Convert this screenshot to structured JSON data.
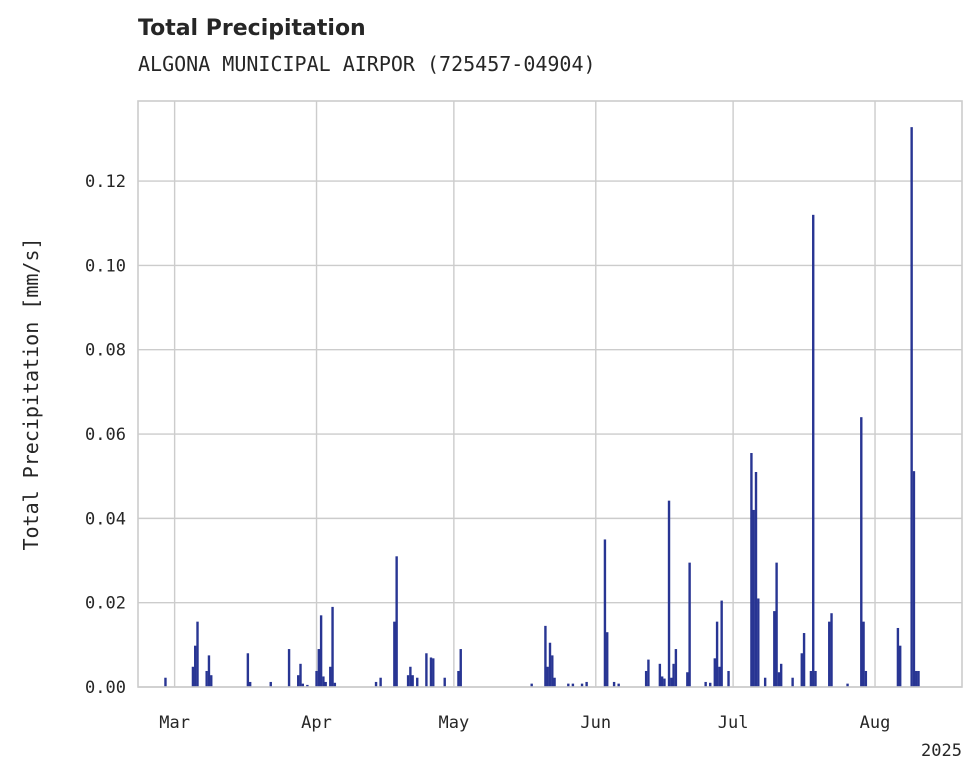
{
  "chart_data": {
    "type": "bar",
    "title": "Total Precipitation",
    "subtitle": "ALGONA MUNICIPAL AIRPOR (725457-04904)",
    "ylabel": "Total Precipitation [mm/s]",
    "xlabel": "",
    "year_label": "2025",
    "x_range": [
      "2025-02-21",
      "2025-08-20"
    ],
    "ylim": [
      0,
      0.139
    ],
    "grid": true,
    "bar_color": "#283593",
    "y_ticks": [
      "0.00",
      "0.02",
      "0.04",
      "0.06",
      "0.08",
      "0.10",
      "0.12"
    ],
    "y_tick_values": [
      0,
      0.02,
      0.04,
      0.06,
      0.08,
      0.1,
      0.12
    ],
    "x_ticks": [
      {
        "date": "2025-03-01",
        "label": "Mar"
      },
      {
        "date": "2025-04-01",
        "label": "Apr"
      },
      {
        "date": "2025-05-01",
        "label": "May"
      },
      {
        "date": "2025-06-01",
        "label": "Jun"
      },
      {
        "date": "2025-07-01",
        "label": "Jul"
      },
      {
        "date": "2025-08-01",
        "label": "Aug"
      }
    ],
    "series": [
      {
        "points": [
          [
            "2025-02-27",
            0.0022
          ],
          [
            "2025-03-05",
            0.0048
          ],
          [
            "2025-03-05T12:00",
            0.0098
          ],
          [
            "2025-03-06",
            0.0155
          ],
          [
            "2025-03-08",
            0.0038
          ],
          [
            "2025-03-08T12:00",
            0.0075
          ],
          [
            "2025-03-09",
            0.0028
          ],
          [
            "2025-03-17",
            0.008
          ],
          [
            "2025-03-17T12:00",
            0.0012
          ],
          [
            "2025-03-22",
            0.0012
          ],
          [
            "2025-03-26",
            0.009
          ],
          [
            "2025-03-28",
            0.0028
          ],
          [
            "2025-03-28T12:00",
            0.0055
          ],
          [
            "2025-03-29",
            0.0008
          ],
          [
            "2025-03-30",
            0.0005
          ],
          [
            "2025-04-01",
            0.0038
          ],
          [
            "2025-04-01T12:00",
            0.009
          ],
          [
            "2025-04-02",
            0.017
          ],
          [
            "2025-04-02T12:00",
            0.0025
          ],
          [
            "2025-04-03",
            0.0012
          ],
          [
            "2025-04-04",
            0.0048
          ],
          [
            "2025-04-04T12:00",
            0.019
          ],
          [
            "2025-04-05",
            0.001
          ],
          [
            "2025-04-14",
            0.0012
          ],
          [
            "2025-04-15",
            0.0022
          ],
          [
            "2025-04-18",
            0.0155
          ],
          [
            "2025-04-18T12:00",
            0.031
          ],
          [
            "2025-04-21",
            0.0028
          ],
          [
            "2025-04-21T12:00",
            0.0048
          ],
          [
            "2025-04-22",
            0.0028
          ],
          [
            "2025-04-23",
            0.0022
          ],
          [
            "2025-04-25",
            0.008
          ],
          [
            "2025-04-26",
            0.007
          ],
          [
            "2025-04-26T12:00",
            0.0068
          ],
          [
            "2025-04-29",
            0.0022
          ],
          [
            "2025-05-02",
            0.0038
          ],
          [
            "2025-05-02T12:00",
            0.009
          ],
          [
            "2025-05-18",
            0.0008
          ],
          [
            "2025-05-21",
            0.0145
          ],
          [
            "2025-05-21T12:00",
            0.0048
          ],
          [
            "2025-05-22",
            0.0105
          ],
          [
            "2025-05-22T12:00",
            0.0075
          ],
          [
            "2025-05-23",
            0.0022
          ],
          [
            "2025-05-26",
            0.0008
          ],
          [
            "2025-05-27",
            0.0008
          ],
          [
            "2025-05-29",
            0.0008
          ],
          [
            "2025-05-30",
            0.0012
          ],
          [
            "2025-06-03",
            0.035
          ],
          [
            "2025-06-03T12:00",
            0.013
          ],
          [
            "2025-06-05",
            0.0012
          ],
          [
            "2025-06-06",
            0.0008
          ],
          [
            "2025-06-12",
            0.0038
          ],
          [
            "2025-06-12T12:00",
            0.0065
          ],
          [
            "2025-06-15",
            0.0055
          ],
          [
            "2025-06-15T12:00",
            0.0025
          ],
          [
            "2025-06-16",
            0.002
          ],
          [
            "2025-06-17",
            0.0442
          ],
          [
            "2025-06-17T12:00",
            0.0022
          ],
          [
            "2025-06-18",
            0.0055
          ],
          [
            "2025-06-18T12:00",
            0.009
          ],
          [
            "2025-06-21",
            0.0035
          ],
          [
            "2025-06-21T12:00",
            0.0295
          ],
          [
            "2025-06-25",
            0.0012
          ],
          [
            "2025-06-26",
            0.001
          ],
          [
            "2025-06-27",
            0.0068
          ],
          [
            "2025-06-27T12:00",
            0.0155
          ],
          [
            "2025-06-28",
            0.0048
          ],
          [
            "2025-06-28T12:00",
            0.0205
          ],
          [
            "2025-06-30",
            0.0038
          ],
          [
            "2025-07-05",
            0.0555
          ],
          [
            "2025-07-05T12:00",
            0.042
          ],
          [
            "2025-07-06",
            0.051
          ],
          [
            "2025-07-06T12:00",
            0.021
          ],
          [
            "2025-07-08",
            0.0022
          ],
          [
            "2025-07-10",
            0.018
          ],
          [
            "2025-07-10T12:00",
            0.0295
          ],
          [
            "2025-07-11",
            0.0035
          ],
          [
            "2025-07-11T12:00",
            0.0055
          ],
          [
            "2025-07-14",
            0.0022
          ],
          [
            "2025-07-16",
            0.008
          ],
          [
            "2025-07-16T12:00",
            0.0128
          ],
          [
            "2025-07-18",
            0.0038
          ],
          [
            "2025-07-18T12:00",
            0.112
          ],
          [
            "2025-07-19",
            0.0038
          ],
          [
            "2025-07-22",
            0.0155
          ],
          [
            "2025-07-22T12:00",
            0.0175
          ],
          [
            "2025-07-26",
            0.0008
          ],
          [
            "2025-07-29",
            0.064
          ],
          [
            "2025-07-29T12:00",
            0.0155
          ],
          [
            "2025-07-30",
            0.0038
          ],
          [
            "2025-08-06",
            0.014
          ],
          [
            "2025-08-06T12:00",
            0.0098
          ],
          [
            "2025-08-09",
            0.1328
          ],
          [
            "2025-08-09T12:00",
            0.0512
          ],
          [
            "2025-08-10",
            0.0038
          ],
          [
            "2025-08-10T12:00",
            0.0038
          ]
        ]
      }
    ]
  }
}
